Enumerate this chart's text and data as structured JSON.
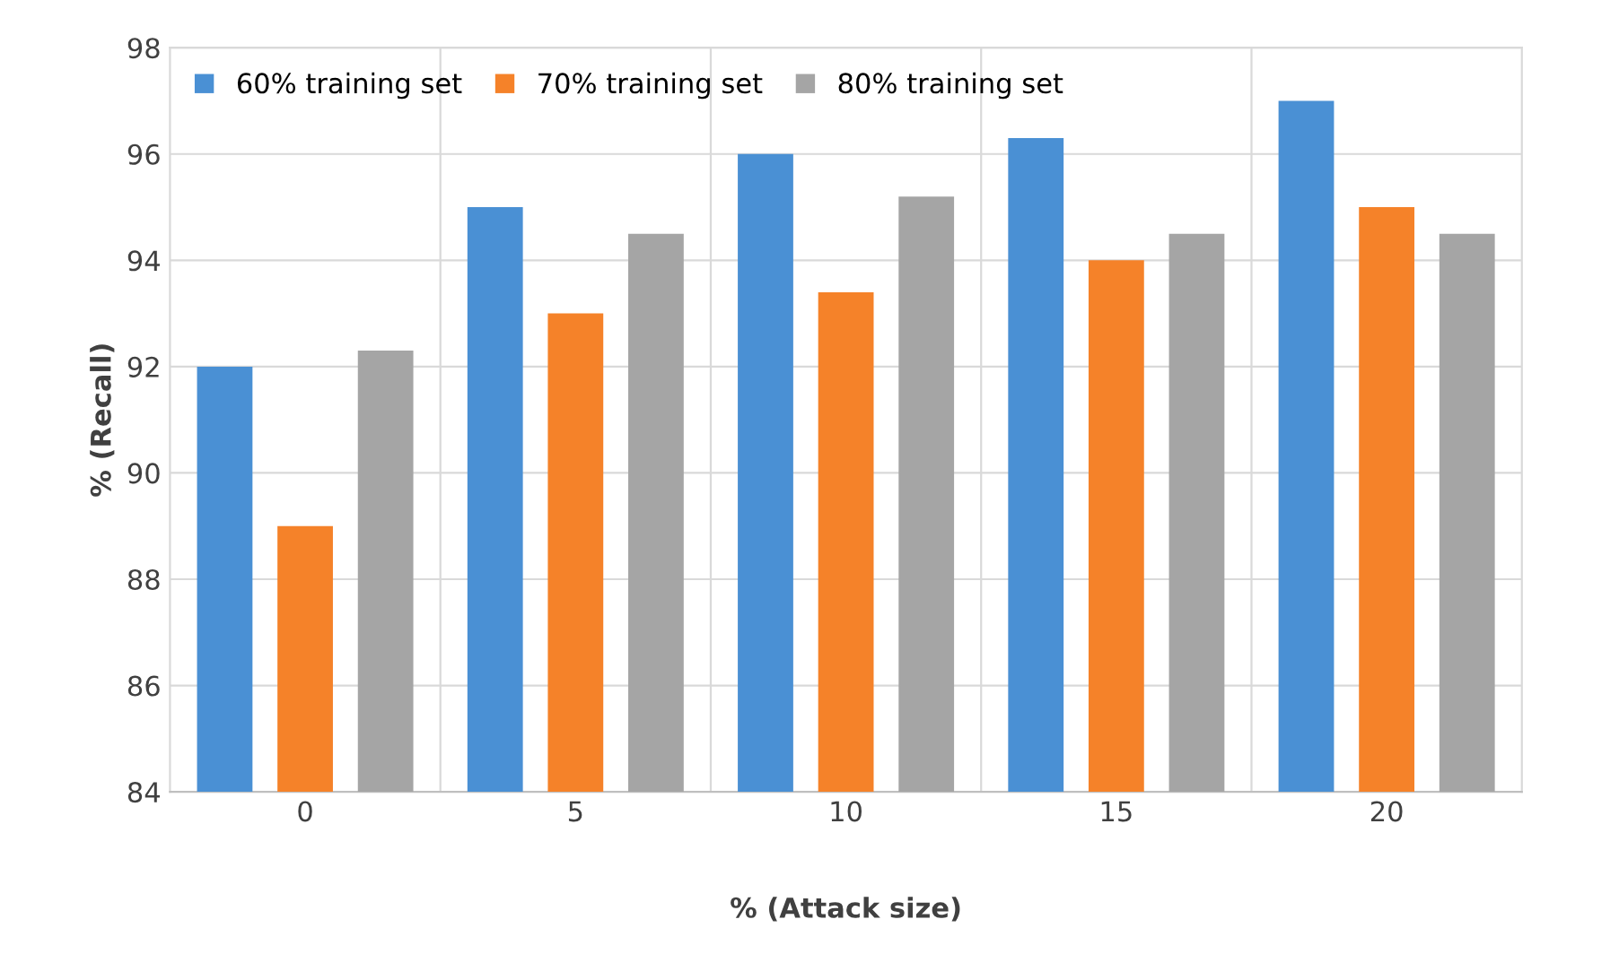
{
  "chart_data": {
    "type": "bar",
    "xlabel": "% (Attack size)",
    "ylabel": "% (Recall)",
    "categories": [
      "0",
      "5",
      "10",
      "15",
      "20"
    ],
    "series": [
      {
        "name": "60% training set",
        "color": "#4a90d4",
        "values": [
          92.0,
          95.0,
          96.0,
          96.3,
          97.0
        ]
      },
      {
        "name": "70% training set",
        "color": "#f58229",
        "values": [
          89.0,
          93.0,
          93.4,
          94.0,
          95.0
        ]
      },
      {
        "name": "80% training set",
        "color": "#a5a5a5",
        "values": [
          92.3,
          94.5,
          95.2,
          94.5,
          94.5
        ]
      }
    ],
    "ylim": [
      84,
      98
    ],
    "yticks": [
      84,
      86,
      88,
      90,
      92,
      94,
      96,
      98
    ],
    "grid": true,
    "legend": "top left"
  }
}
